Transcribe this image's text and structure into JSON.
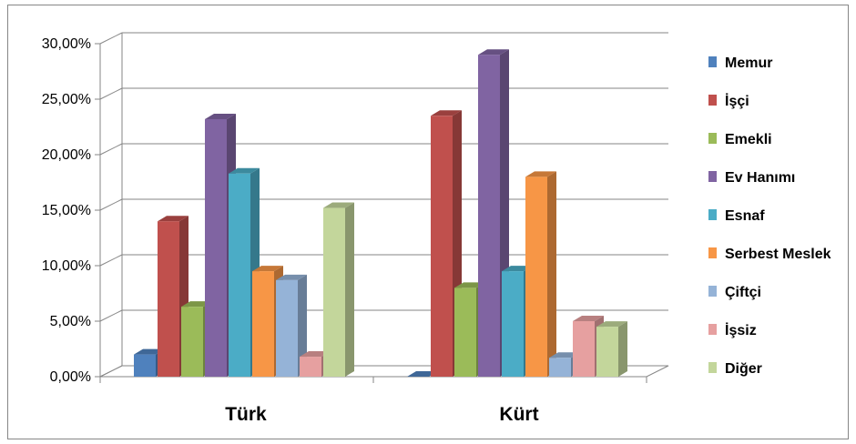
{
  "chart_data": {
    "type": "bar",
    "categories": [
      "Türk",
      "Kürt"
    ],
    "series": [
      {
        "name": "Memur",
        "values": [
          0.02,
          0.0
        ],
        "color": "#4F81BD"
      },
      {
        "name": "İşçi",
        "values": [
          0.14,
          0.235
        ],
        "color": "#C0504D"
      },
      {
        "name": "Emekli",
        "values": [
          0.063,
          0.08
        ],
        "color": "#9BBB59"
      },
      {
        "name": "Ev Hanımı",
        "values": [
          0.232,
          0.29
        ],
        "color": "#8064A2"
      },
      {
        "name": "Esnaf",
        "values": [
          0.183,
          0.095
        ],
        "color": "#4BACC6"
      },
      {
        "name": "Serbest Meslek",
        "values": [
          0.095,
          0.18
        ],
        "color": "#F79646"
      },
      {
        "name": "Çiftçi",
        "values": [
          0.087,
          0.017
        ],
        "color": "#95B3D7"
      },
      {
        "name": "İşsiz",
        "values": [
          0.018,
          0.05
        ],
        "color": "#E6A0A0"
      },
      {
        "name": "Diğer",
        "values": [
          0.152,
          0.045
        ],
        "color": "#C3D69B"
      }
    ],
    "yticks": [
      "0,00%",
      "5,00%",
      "10,00%",
      "15,00%",
      "20,00%",
      "25,00%",
      "30,00%"
    ],
    "ylim": [
      0,
      0.3
    ],
    "grid": true,
    "legend_position": "right",
    "style": "3d-clustered-column"
  }
}
